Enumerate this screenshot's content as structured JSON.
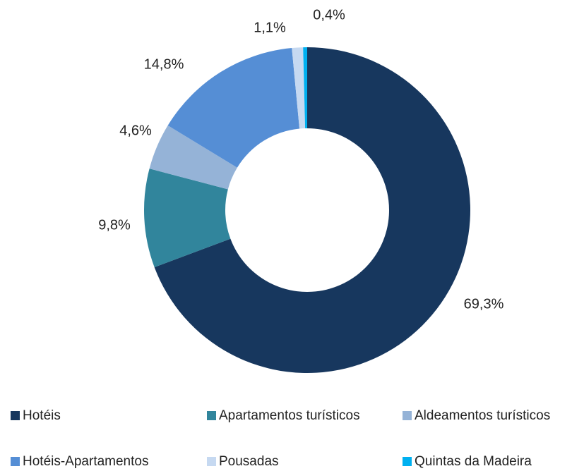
{
  "chart_data": {
    "type": "donut",
    "categories": [
      "Hotéis",
      "Apartamentos turísticos",
      "Aldeamentos turísticos",
      "Hotéis-Apartamentos",
      "Pousadas",
      "Quintas da Madeira"
    ],
    "values": [
      69.3,
      9.8,
      4.6,
      14.8,
      1.1,
      0.4
    ],
    "value_labels": [
      "69,3%",
      "9,8%",
      "4,6%",
      "14,8%",
      "1,1%",
      "0,4%"
    ],
    "colors": [
      "#17375e",
      "#31859c",
      "#95b3d7",
      "#558ed5",
      "#c6d9f1",
      "#00b0f0"
    ],
    "legend": "bottom"
  }
}
